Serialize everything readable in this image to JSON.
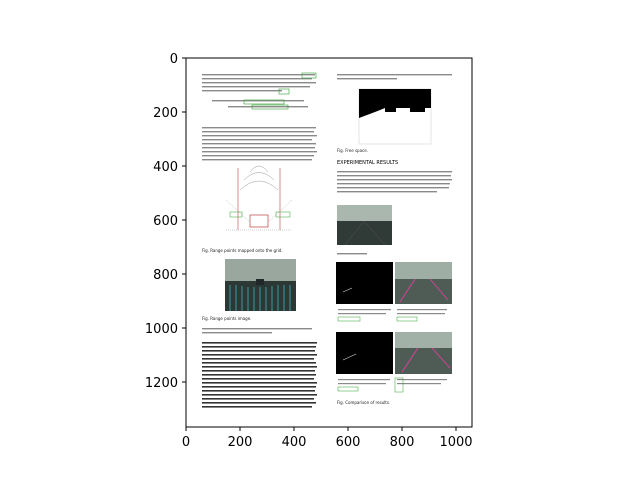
{
  "axes": {
    "x_ticks": [
      "0",
      "200",
      "400",
      "600",
      "800",
      "1000"
    ],
    "y_ticks": [
      "0",
      "200",
      "400",
      "600",
      "800",
      "1000",
      "1200"
    ],
    "xlim": [
      0,
      1060
    ],
    "ylim": [
      1370,
      0
    ]
  },
  "paper": {
    "section_heading": "EXPERIMENTAL RESULTS",
    "fig_caption_free_space": "Fig. Free space.",
    "fig_caption_left_1": "Fig. Range points mapped onto the grid.",
    "fig_caption_left_2": "Fig. Range points image.",
    "fig_caption_right_1": "Fig. Compared with the approach.",
    "fig_caption_right_2": "Fig. Comparison of results."
  },
  "colors": {
    "page": "#ffffff",
    "text_gray": "#8a8a8a",
    "highlight_green": "#2ca02c",
    "image_dark": "#1e2a24",
    "lane_pink": "#e0409a"
  }
}
